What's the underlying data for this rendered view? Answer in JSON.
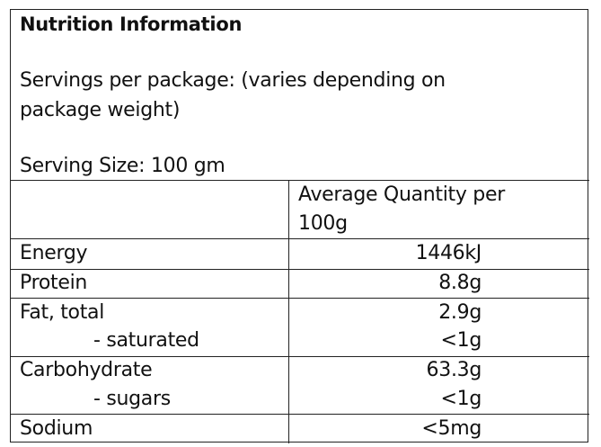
{
  "title": "Nutrition Information",
  "servings_per_package_line1": "Servings per package: (varies depending on",
  "servings_per_package_line2": "package weight)",
  "serving_size": "Serving Size: 100 gm",
  "column_header_line1": "Average Quantity per",
  "column_header_line2": "100g",
  "rows": [
    {
      "label": "Energy",
      "value": "1446kJ"
    },
    {
      "label": "Protein",
      "value": "8.8g"
    },
    {
      "label": "Fat, total",
      "value": "2.9g"
    },
    {
      "label": "- saturated",
      "value": "<1g"
    },
    {
      "label": "Carbohydrate",
      "value": "63.3g"
    },
    {
      "label": "- sugars",
      "value": "<1g"
    },
    {
      "label": "Sodium",
      "value": "<5mg"
    }
  ]
}
